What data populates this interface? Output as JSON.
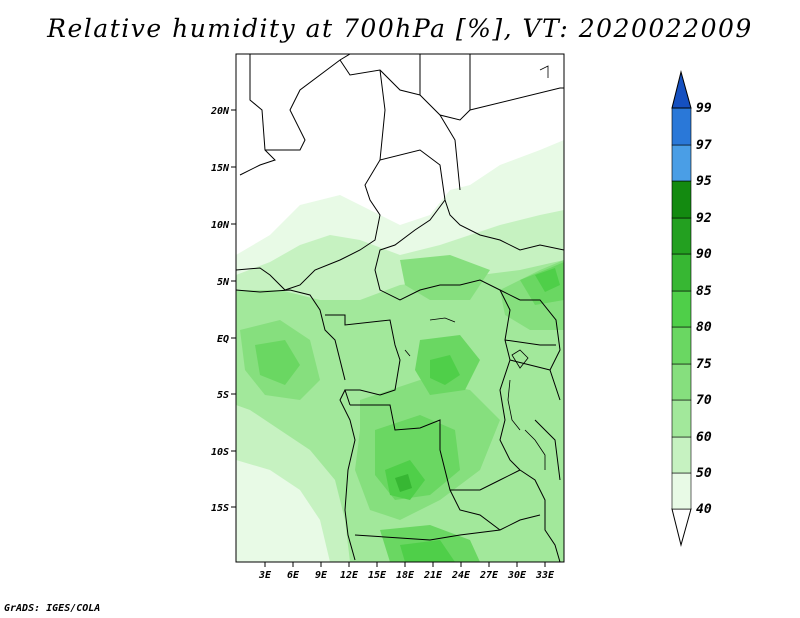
{
  "title": "Relative humidity at 700hPa [%], VT: 2020022009",
  "credit": "GrADS: IGES/COLA",
  "map": {
    "lat_labels": [
      "20N",
      "15N",
      "10N",
      "5N",
      "EQ",
      "5S",
      "10S",
      "15S"
    ],
    "lon_labels": [
      "3E",
      "6E",
      "9E",
      "12E",
      "15E",
      "18E",
      "21E",
      "24E",
      "27E",
      "30E",
      "33E"
    ]
  },
  "colorbar": {
    "labels": [
      "40",
      "50",
      "60",
      "70",
      "75",
      "80",
      "85",
      "90",
      "92",
      "95",
      "97",
      "99"
    ],
    "colors": [
      "#ffffff",
      "#e8fae6",
      "#c6f2c1",
      "#a2e89b",
      "#86df7e",
      "#6ad762",
      "#4fcf49",
      "#37b733",
      "#23a020",
      "#138a10",
      "#4a9ee6",
      "#2a78d8",
      "#1550c0"
    ]
  }
}
